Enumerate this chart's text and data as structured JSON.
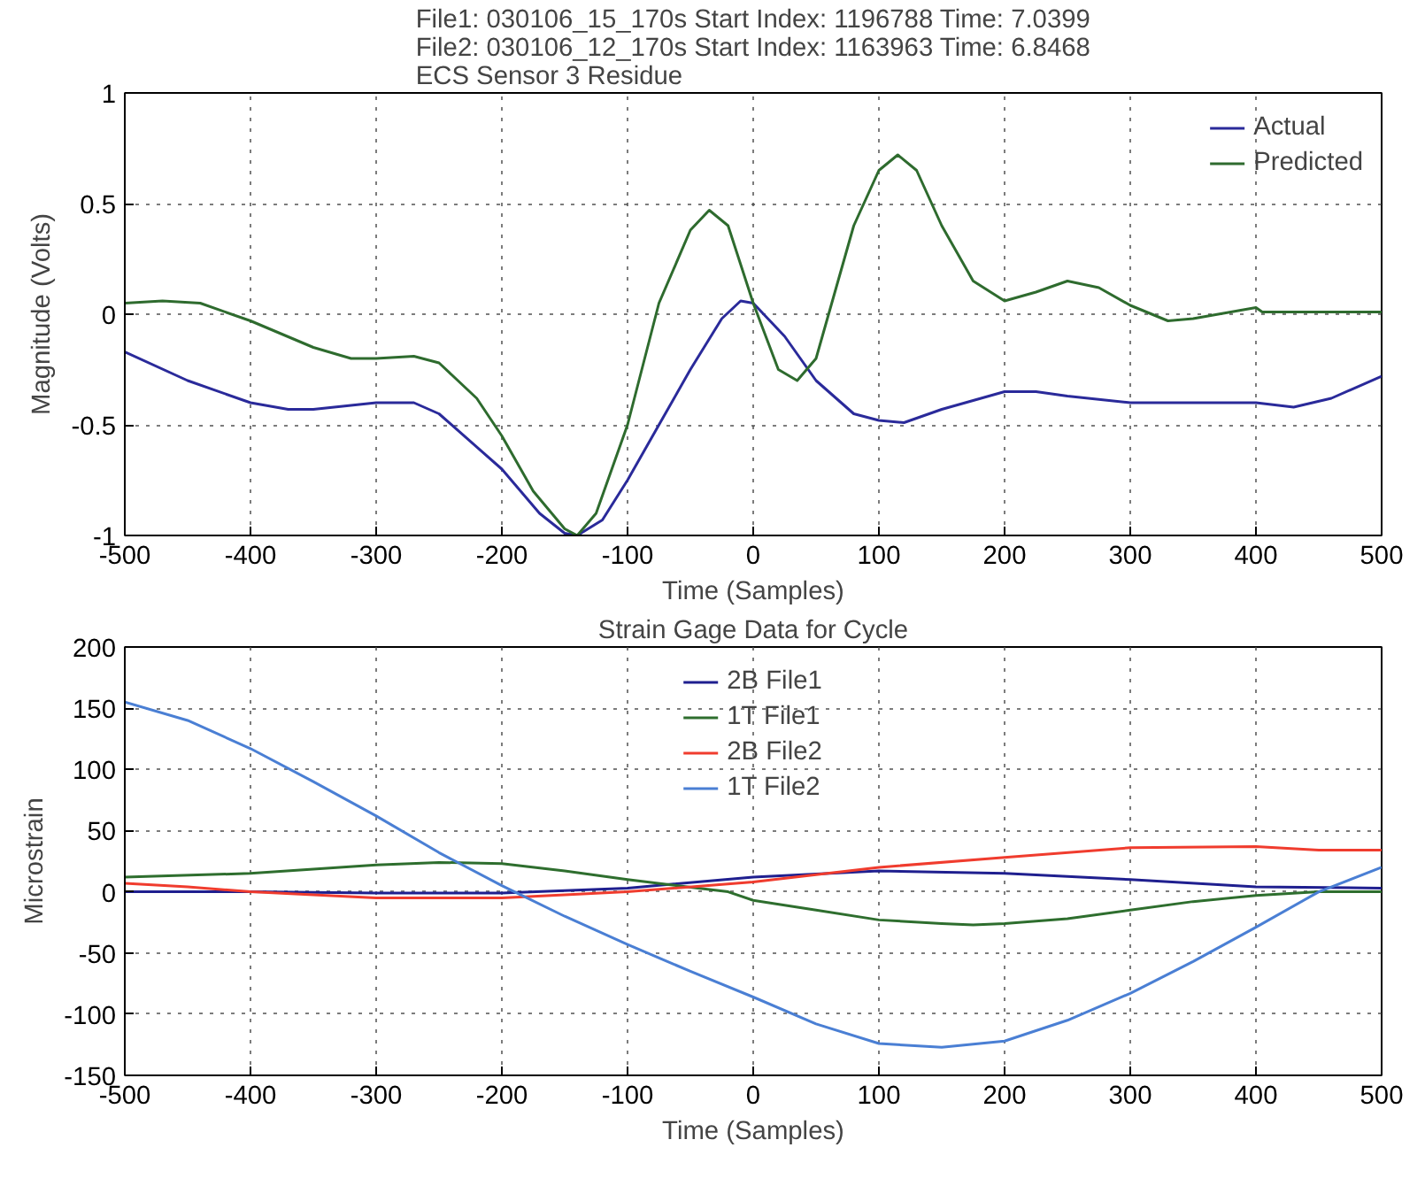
{
  "chart_data": [
    {
      "type": "line",
      "title": "File1: 030106_15_170s Start Index: 1196788 Time: 7.0399\nFile2: 030106_12_170s Start Index: 1163963 Time: 6.8468\nECS Sensor 3 Residue",
      "xlabel": "Time (Samples)",
      "ylabel": "Magnitude (Volts)",
      "xlim": [
        -500,
        500
      ],
      "ylim": [
        -1,
        1
      ],
      "xticks": [
        -500,
        -400,
        -300,
        -200,
        -100,
        0,
        100,
        200,
        300,
        400,
        500
      ],
      "yticks": [
        -1,
        -0.5,
        0,
        0.5,
        1
      ],
      "grid": true,
      "legend": "top right",
      "line_style": "solid",
      "series": [
        {
          "name": "Actual",
          "color": "#2a2a9a",
          "x": [
            -500,
            -450,
            -400,
            -370,
            -350,
            -300,
            -270,
            -250,
            -200,
            -170,
            -150,
            -140,
            -120,
            -100,
            -75,
            -50,
            -25,
            -10,
            0,
            25,
            50,
            80,
            100,
            120,
            150,
            200,
            225,
            250,
            300,
            350,
            400,
            430,
            460,
            500
          ],
          "values": [
            -0.17,
            -0.3,
            -0.4,
            -0.43,
            -0.43,
            -0.4,
            -0.4,
            -0.45,
            -0.7,
            -0.9,
            -0.99,
            -1.0,
            -0.93,
            -0.75,
            -0.5,
            -0.25,
            -0.02,
            0.06,
            0.05,
            -0.1,
            -0.3,
            -0.45,
            -0.48,
            -0.49,
            -0.43,
            -0.35,
            -0.35,
            -0.37,
            -0.4,
            -0.4,
            -0.4,
            -0.42,
            -0.38,
            -0.28
          ]
        },
        {
          "name": "Predicted",
          "color": "#2e6b2e",
          "x": [
            -500,
            -470,
            -440,
            -400,
            -350,
            -320,
            -300,
            -270,
            -250,
            -220,
            -200,
            -175,
            -150,
            -140,
            -125,
            -100,
            -75,
            -50,
            -35,
            -20,
            0,
            20,
            35,
            50,
            80,
            100,
            115,
            130,
            150,
            175,
            200,
            225,
            250,
            275,
            300,
            330,
            350,
            380,
            400,
            405,
            450,
            500
          ],
          "values": [
            0.05,
            0.06,
            0.05,
            -0.03,
            -0.15,
            -0.2,
            -0.2,
            -0.19,
            -0.22,
            -0.38,
            -0.55,
            -0.8,
            -0.97,
            -1.0,
            -0.9,
            -0.5,
            0.05,
            0.38,
            0.47,
            0.4,
            0.05,
            -0.25,
            -0.3,
            -0.2,
            0.4,
            0.65,
            0.72,
            0.65,
            0.4,
            0.15,
            0.06,
            0.1,
            0.15,
            0.12,
            0.04,
            -0.03,
            -0.02,
            0.01,
            0.03,
            0.01,
            0.01,
            0.01
          ]
        }
      ]
    },
    {
      "type": "line",
      "title": "Strain Gage Data for Cycle",
      "xlabel": "Time (Samples)",
      "ylabel": "Microstrain",
      "xlim": [
        -500,
        500
      ],
      "ylim": [
        -150,
        200
      ],
      "xticks": [
        -500,
        -400,
        -300,
        -200,
        -100,
        0,
        100,
        200,
        300,
        400,
        500
      ],
      "yticks": [
        -150,
        -100,
        -50,
        0,
        50,
        100,
        150,
        200
      ],
      "grid": true,
      "legend": "top",
      "line_style": "solid",
      "series": [
        {
          "name": "2B File1",
          "color": "#1f1f8f",
          "x": [
            -500,
            -400,
            -300,
            -200,
            -100,
            0,
            100,
            200,
            300,
            400,
            500
          ],
          "values": [
            0,
            0,
            -1,
            -1,
            3,
            12,
            17,
            15,
            10,
            4,
            3
          ]
        },
        {
          "name": "1T File1",
          "color": "#2e6e2e",
          "x": [
            -500,
            -400,
            -300,
            -250,
            -200,
            -150,
            -100,
            -60,
            -20,
            0,
            50,
            100,
            150,
            175,
            200,
            250,
            300,
            350,
            400,
            450,
            500
          ],
          "values": [
            12,
            15,
            22,
            24,
            23,
            17,
            10,
            5,
            0,
            -7,
            -15,
            -23,
            -26,
            -27,
            -26,
            -22,
            -15,
            -8,
            -3,
            0,
            0
          ]
        },
        {
          "name": "2B File2",
          "color": "#f03c2e",
          "x": [
            -500,
            -450,
            -400,
            -300,
            -200,
            -100,
            0,
            50,
            100,
            200,
            300,
            400,
            450,
            500
          ],
          "values": [
            7,
            4,
            0,
            -5,
            -5,
            0,
            8,
            14,
            20,
            28,
            36,
            37,
            34,
            34
          ]
        },
        {
          "name": "1T File2",
          "color": "#4a7fd4",
          "x": [
            -500,
            -450,
            -400,
            -350,
            -300,
            -250,
            -200,
            -150,
            -100,
            -50,
            0,
            50,
            100,
            150,
            200,
            250,
            300,
            350,
            400,
            450,
            500
          ],
          "values": [
            155,
            140,
            117,
            90,
            62,
            32,
            5,
            -20,
            -43,
            -65,
            -86,
            -108,
            -124,
            -127,
            -122,
            -105,
            -83,
            -57,
            -29,
            0,
            20
          ]
        }
      ]
    }
  ]
}
